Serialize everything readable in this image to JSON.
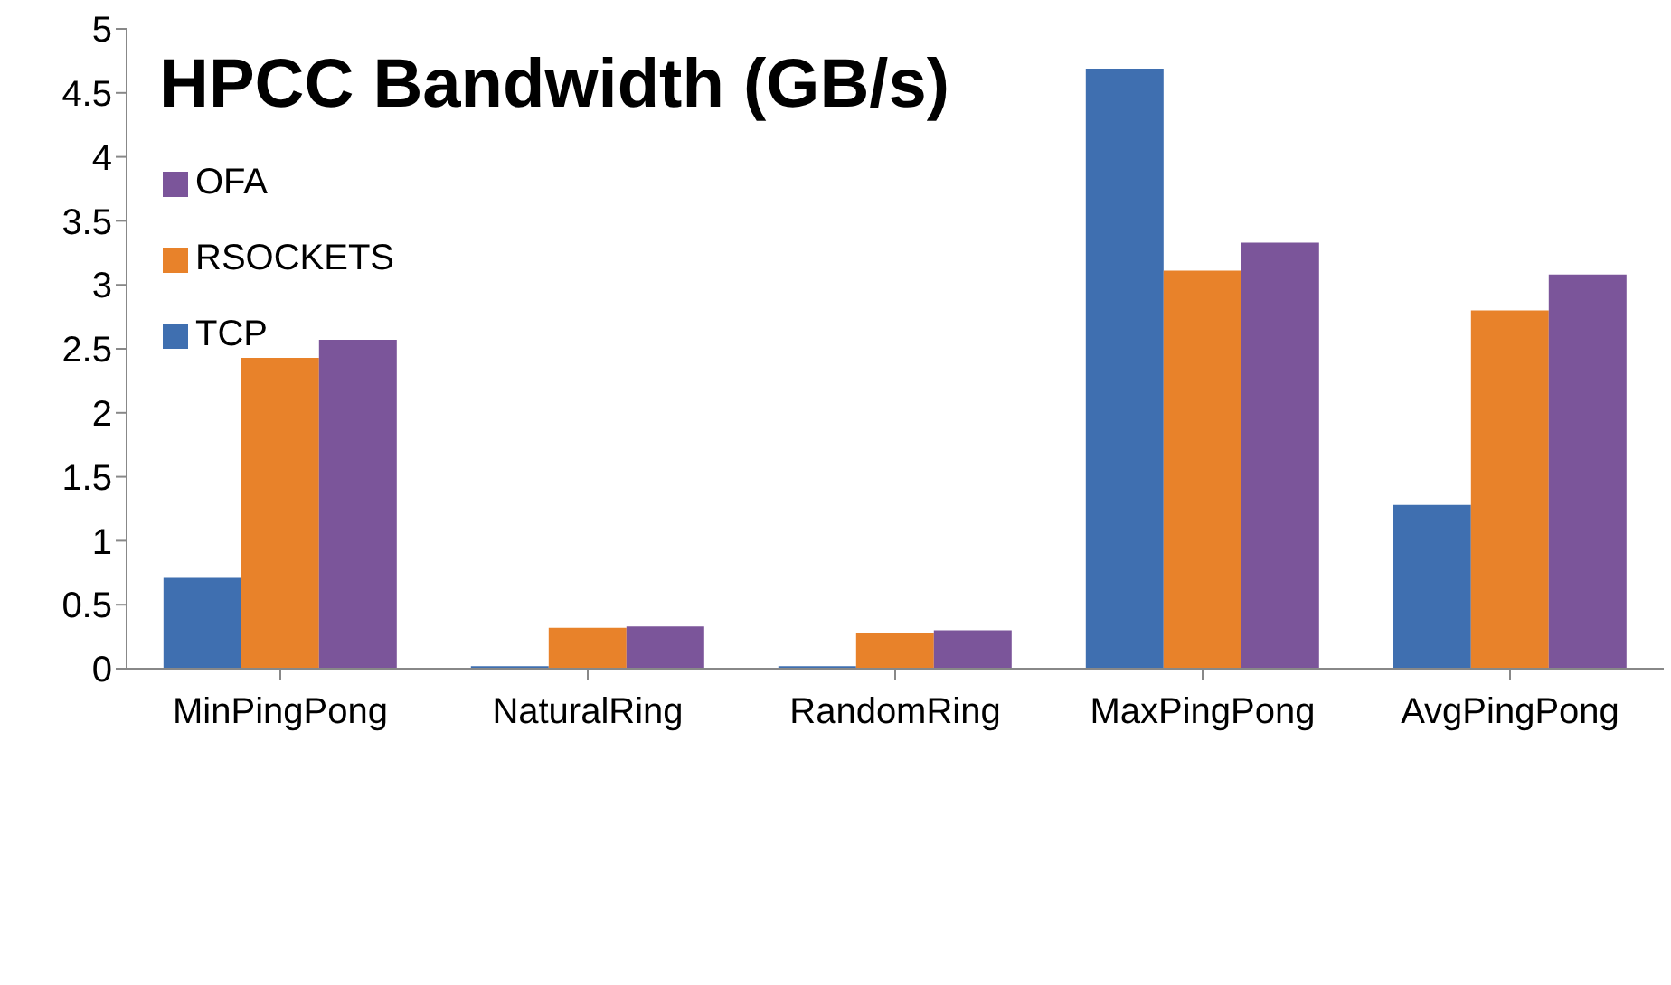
{
  "chart_data": {
    "type": "bar",
    "title": "HPCC Bandwidth (GB/s)",
    "categories": [
      "MinPingPong",
      "NaturalRing",
      "RandomRing",
      "MaxPingPong",
      "AvgPingPong"
    ],
    "series": [
      {
        "name": "TCP",
        "color": "#3f6fb0",
        "values": [
          0.71,
          0.02,
          0.02,
          4.69,
          1.28
        ]
      },
      {
        "name": "RSOCKETS",
        "color": "#e8822a",
        "values": [
          2.43,
          0.32,
          0.28,
          3.11,
          2.8
        ]
      },
      {
        "name": "OFA",
        "color": "#7b559a",
        "values": [
          2.57,
          0.33,
          0.3,
          3.33,
          3.08
        ]
      }
    ],
    "ylim": [
      0,
      5
    ],
    "yticks": [
      0,
      0.5,
      1,
      1.5,
      2,
      2.5,
      3,
      3.5,
      4,
      4.5,
      5
    ],
    "grid": false,
    "legend": "top left"
  }
}
